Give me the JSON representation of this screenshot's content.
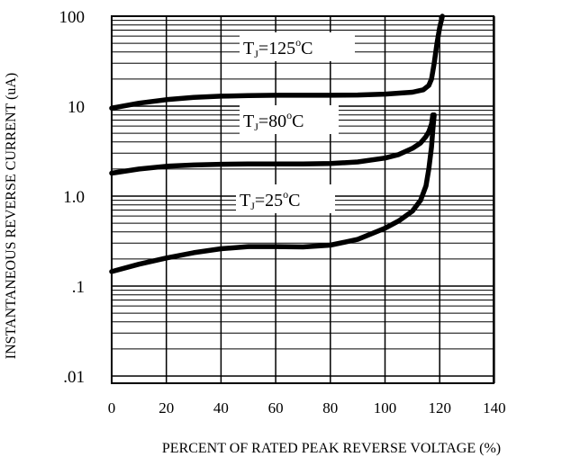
{
  "chart_data": {
    "type": "line",
    "title": "",
    "xlabel": "PERCENT OF RATED PEAK REVERSE VOLTAGE (%)",
    "ylabel": "INSTANTANEOUS REVERSE CURRENT (uA)",
    "x_ticks": [
      0,
      20,
      40,
      60,
      80,
      100,
      120,
      140
    ],
    "y_ticks": [
      ".01",
      ".1",
      "1.0",
      "10",
      "100"
    ],
    "xlim": [
      0,
      140
    ],
    "ylim": [
      0.01,
      100
    ],
    "y_scale": "log",
    "grid": true,
    "series": [
      {
        "name": "TJ=125°C",
        "label_main": "T",
        "label_sub": "J",
        "label_rest": "=125",
        "label_sup": "o",
        "label_unit": "C",
        "x": [
          0,
          10,
          20,
          30,
          40,
          50,
          60,
          70,
          80,
          90,
          100,
          110,
          114,
          116,
          117,
          118,
          119,
          120,
          121
        ],
        "y": [
          9.5,
          10.8,
          11.8,
          12.5,
          12.9,
          13.1,
          13.2,
          13.2,
          13.2,
          13.3,
          13.6,
          14.3,
          15.2,
          17,
          20,
          30,
          50,
          75,
          100
        ]
      },
      {
        "name": "TJ=80°C",
        "label_main": "T",
        "label_sub": "J",
        "label_rest": "=80",
        "label_sup": "o",
        "label_unit": "C",
        "x": [
          0,
          10,
          20,
          30,
          40,
          50,
          60,
          70,
          80,
          90,
          100,
          105,
          110,
          113,
          115,
          116,
          117,
          117.5
        ],
        "y": [
          1.8,
          2.0,
          2.15,
          2.22,
          2.26,
          2.28,
          2.28,
          2.28,
          2.3,
          2.4,
          2.65,
          2.9,
          3.4,
          3.9,
          4.6,
          5.2,
          6.3,
          8
        ]
      },
      {
        "name": "TJ=25°C",
        "label_main": "T",
        "label_sub": "J",
        "label_rest": "=25",
        "label_sup": "o",
        "label_unit": "C",
        "x": [
          0,
          10,
          20,
          30,
          40,
          50,
          60,
          70,
          80,
          90,
          100,
          105,
          110,
          113,
          115,
          116,
          117,
          117.5,
          118
        ],
        "y": [
          0.145,
          0.175,
          0.205,
          0.235,
          0.26,
          0.275,
          0.275,
          0.272,
          0.285,
          0.33,
          0.44,
          0.53,
          0.68,
          0.9,
          1.3,
          2.0,
          3.5,
          5.5,
          8
        ]
      }
    ]
  }
}
